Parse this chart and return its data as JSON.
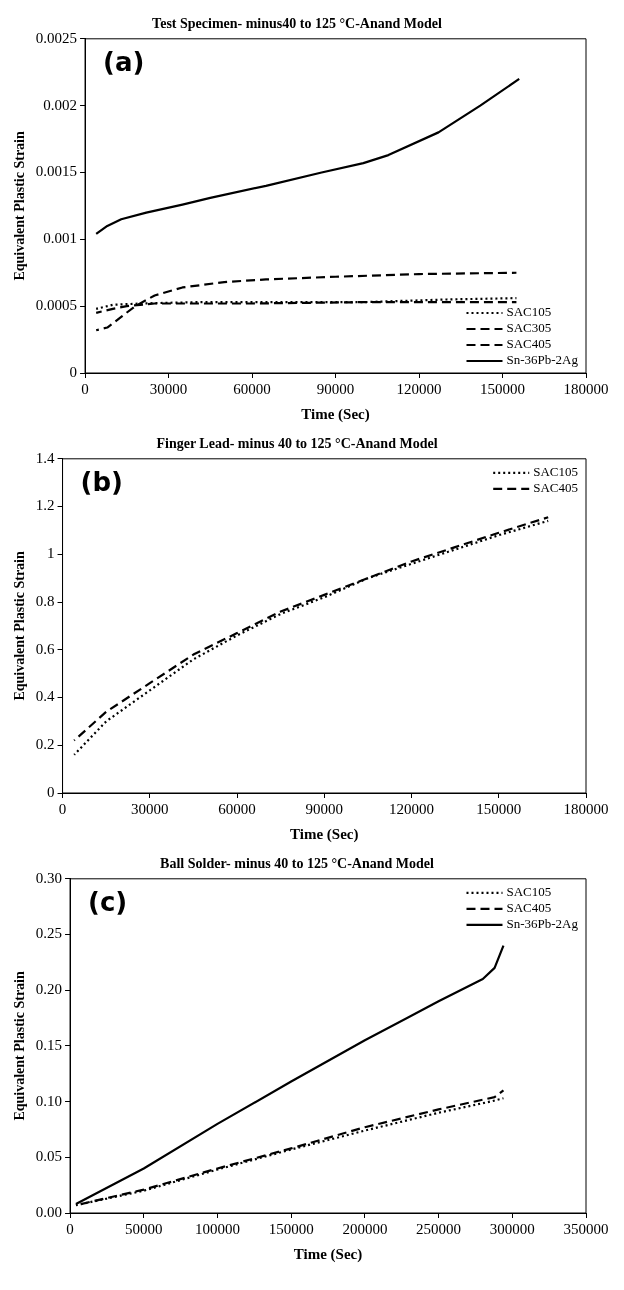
{
  "chart_data": [
    {
      "type": "line",
      "title": "Test Specimen- minus40 to 125 °C-Anand Model",
      "xlabel": "Time (Sec)",
      "ylabel": "Equivalent Plastic Strain",
      "annotations": [
        "(a)"
      ],
      "xlim": [
        0,
        180000
      ],
      "xticks": [
        0,
        30000,
        60000,
        90000,
        120000,
        150000,
        180000
      ],
      "ylim": [
        0,
        0.0025
      ],
      "yticks": [
        0,
        0.0005,
        0.001,
        0.0015,
        0.002,
        0.0025
      ],
      "grid": false,
      "legend": "bottom right",
      "marker": "none",
      "series": [
        {
          "name": "SAC105",
          "color": "#000000",
          "line_style": "dotted",
          "x": [
            4000,
            10000,
            20000,
            40000,
            70000,
            100000,
            130000,
            155000
          ],
          "values": [
            0.00048,
            0.00051,
            0.00052,
            0.00053,
            0.00053,
            0.00053,
            0.00055,
            0.00056
          ]
        },
        {
          "name": "SAC305",
          "color": "#000000",
          "line_style": "dashed",
          "x": [
            4000,
            10000,
            15000,
            25000,
            60000,
            100000,
            130000,
            155000
          ],
          "values": [
            0.00045,
            0.00048,
            0.0005,
            0.00052,
            0.00052,
            0.00053,
            0.00053,
            0.00053
          ]
        },
        {
          "name": "SAC405",
          "color": "#000000",
          "line_style": "dashed",
          "x": [
            4000,
            8000,
            13000,
            18000,
            25000,
            35000,
            50000,
            65000,
            90000,
            120000,
            155000
          ],
          "values": [
            0.00032,
            0.00034,
            0.00042,
            0.0005,
            0.00058,
            0.00064,
            0.00068,
            0.0007,
            0.00072,
            0.00074,
            0.00075
          ]
        },
        {
          "name": "Sn-36Pb-2Ag",
          "color": "#000000",
          "line_style": "solid",
          "x": [
            4000,
            8000,
            13000,
            22000,
            35000,
            45000,
            65000,
            85000,
            100000,
            109000,
            127000,
            142000,
            156000
          ],
          "values": [
            0.00104,
            0.0011,
            0.00115,
            0.0012,
            0.00126,
            0.00131,
            0.0014,
            0.0015,
            0.00157,
            0.00163,
            0.0018,
            0.002,
            0.0022
          ]
        }
      ]
    },
    {
      "type": "line",
      "title": "Finger Lead- minus 40 to 125 °C-Anand Model",
      "xlabel": "Time (Sec)",
      "ylabel": "Equivalent Plastic Strain",
      "annotations": [
        "(b)"
      ],
      "xlim": [
        0,
        180000
      ],
      "xticks": [
        0,
        30000,
        60000,
        90000,
        120000,
        150000,
        180000
      ],
      "ylim": [
        0,
        1.4
      ],
      "yticks": [
        0,
        0.2,
        0.4,
        0.6,
        0.8,
        1,
        1.2,
        1.4
      ],
      "grid": false,
      "legend": "top right",
      "marker": "none",
      "series": [
        {
          "name": "SAC105",
          "color": "#000000",
          "line_style": "dotted",
          "x": [
            4000,
            15000,
            30000,
            45000,
            60000,
            75000,
            90000,
            105000,
            120000,
            135000,
            150000,
            167000
          ],
          "values": [
            0.16,
            0.3,
            0.43,
            0.56,
            0.66,
            0.75,
            0.82,
            0.9,
            0.96,
            1.02,
            1.08,
            1.14
          ]
        },
        {
          "name": "SAC405",
          "color": "#000000",
          "line_style": "dashed",
          "x": [
            4000,
            15000,
            30000,
            45000,
            60000,
            75000,
            90000,
            105000,
            120000,
            135000,
            150000,
            167000
          ],
          "values": [
            0.22,
            0.34,
            0.46,
            0.58,
            0.67,
            0.76,
            0.83,
            0.9,
            0.97,
            1.03,
            1.09,
            1.155
          ]
        }
      ]
    },
    {
      "type": "line",
      "title": "Ball Solder- minus 40 to 125 °C-Anand Model",
      "xlabel": "Time (Sec)",
      "ylabel": "Equivalent Plastic Strain",
      "annotations": [
        "(c)"
      ],
      "xlim": [
        0,
        350000
      ],
      "xticks": [
        0,
        50000,
        100000,
        150000,
        200000,
        250000,
        300000,
        350000
      ],
      "ylim": [
        0,
        0.3
      ],
      "yticks": [
        {
          "value": 0,
          "label": "0.00"
        },
        {
          "value": 0.05,
          "label": "0.05"
        },
        {
          "value": 0.1,
          "label": "0.10"
        },
        {
          "value": 0.15,
          "label": "0.15"
        },
        {
          "value": 0.2,
          "label": "0.20"
        },
        {
          "value": 0.25,
          "label": "0.25"
        },
        {
          "value": 0.3,
          "label": "0.30"
        }
      ],
      "grid": false,
      "legend": "top right",
      "marker": "none",
      "series": [
        {
          "name": "SAC105",
          "color": "#000000",
          "line_style": "dotted",
          "x": [
            4000,
            50000,
            100000,
            150000,
            200000,
            250000,
            285000,
            294000
          ],
          "values": [
            0.007,
            0.02,
            0.039,
            0.057,
            0.074,
            0.09,
            0.1,
            0.103
          ]
        },
        {
          "name": "SAC405",
          "color": "#000000",
          "line_style": "dashed",
          "x": [
            4000,
            50000,
            100000,
            150000,
            200000,
            250000,
            288000,
            294000
          ],
          "values": [
            0.007,
            0.021,
            0.04,
            0.058,
            0.077,
            0.093,
            0.104,
            0.11
          ]
        },
        {
          "name": "Sn-36Pb-2Ag",
          "color": "#000000",
          "line_style": "solid",
          "x": [
            4000,
            50000,
            100000,
            150000,
            200000,
            250000,
            280000,
            288000,
            294000
          ],
          "values": [
            0.008,
            0.04,
            0.08,
            0.118,
            0.155,
            0.19,
            0.21,
            0.22,
            0.24
          ]
        }
      ]
    }
  ]
}
